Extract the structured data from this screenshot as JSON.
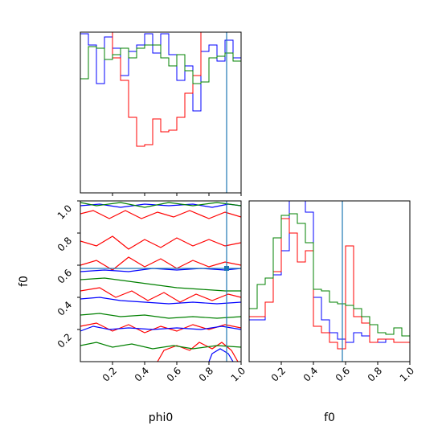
{
  "chart_data": [
    {
      "type": "histogram",
      "panel": "phi0 marginal (top-left)",
      "xlim": [
        0,
        1
      ],
      "truth": 0.91,
      "series": [
        {
          "color": "#0000ff",
          "bins": [
            0.0,
            0.05,
            0.1,
            0.15,
            0.2,
            0.25,
            0.3,
            0.35,
            0.4,
            0.45,
            0.5,
            0.55,
            0.6,
            0.65,
            0.7,
            0.75,
            0.8,
            0.85,
            0.9,
            0.95,
            1.0
          ],
          "heights": [
            0.99,
            0.92,
            0.68,
            0.97,
            0.9,
            0.73,
            0.88,
            0.92,
            0.99,
            0.87,
            0.99,
            0.86,
            0.7,
            0.79,
            0.51,
            0.88,
            0.92,
            0.82,
            0.95,
            0.84
          ]
        },
        {
          "color": "#ff0000",
          "bins": [
            0.0,
            0.05,
            0.1,
            0.15,
            0.2,
            0.25,
            0.3,
            0.35,
            0.4,
            0.45,
            0.5,
            0.55,
            0.6,
            0.65,
            0.7,
            0.75,
            0.8,
            0.85,
            0.9,
            0.95,
            1.0
          ],
          "heights": [
            1.2,
            1.2,
            1.2,
            1.2,
            0.84,
            0.7,
            0.47,
            0.29,
            0.3,
            0.46,
            0.38,
            0.39,
            0.47,
            0.62,
            0.73,
            1.2,
            1.2,
            1.2,
            1.2,
            1.2
          ]
        },
        {
          "color": "#008000",
          "bins": [
            0.0,
            0.05,
            0.1,
            0.15,
            0.2,
            0.25,
            0.3,
            0.35,
            0.4,
            0.45,
            0.5,
            0.55,
            0.6,
            0.65,
            0.7,
            0.75,
            0.8,
            0.85,
            0.9,
            0.95,
            1.0
          ],
          "heights": [
            0.71,
            0.91,
            0.9,
            0.83,
            0.86,
            0.9,
            0.84,
            0.9,
            0.92,
            0.92,
            0.84,
            0.79,
            0.86,
            0.76,
            0.68,
            0.69,
            0.84,
            0.85,
            0.87,
            0.82
          ]
        }
      ]
    },
    {
      "type": "contour",
      "panel": "phi0 vs f0 (bottom-left)",
      "xlabel": "phi0",
      "ylabel": "f0",
      "xlim": [
        0,
        1
      ],
      "ylim": [
        0,
        1
      ],
      "xticks": [
        "0.2",
        "0.4",
        "0.6",
        "0.8",
        "1.0"
      ],
      "yticks": [
        "0.2",
        "0.4",
        "0.6",
        "0.8",
        "1.0"
      ],
      "truth": {
        "x": 0.91,
        "y": 0.58
      },
      "contours": [
        {
          "color": "#ff0000",
          "lines": [
            [
              [
                0.0,
                0.92
              ],
              [
                0.08,
                0.94
              ],
              [
                0.18,
                0.89
              ],
              [
                0.28,
                0.94
              ],
              [
                0.38,
                0.89
              ],
              [
                0.48,
                0.93
              ],
              [
                0.58,
                0.9
              ],
              [
                0.68,
                0.94
              ],
              [
                0.8,
                0.89
              ],
              [
                0.9,
                0.93
              ],
              [
                1.0,
                0.9
              ]
            ],
            [
              [
                0.0,
                0.75
              ],
              [
                0.1,
                0.72
              ],
              [
                0.2,
                0.78
              ],
              [
                0.3,
                0.7
              ],
              [
                0.4,
                0.76
              ],
              [
                0.5,
                0.71
              ],
              [
                0.6,
                0.77
              ],
              [
                0.7,
                0.72
              ],
              [
                0.8,
                0.76
              ],
              [
                0.9,
                0.72
              ],
              [
                1.0,
                0.74
              ]
            ],
            [
              [
                0.0,
                0.6
              ],
              [
                0.1,
                0.63
              ],
              [
                0.2,
                0.57
              ],
              [
                0.3,
                0.65
              ],
              [
                0.4,
                0.59
              ],
              [
                0.5,
                0.64
              ],
              [
                0.6,
                0.58
              ],
              [
                0.7,
                0.63
              ],
              [
                0.8,
                0.59
              ],
              [
                0.9,
                0.62
              ],
              [
                1.0,
                0.6
              ]
            ],
            [
              [
                0.0,
                0.44
              ],
              [
                0.12,
                0.46
              ],
              [
                0.22,
                0.4
              ],
              [
                0.32,
                0.44
              ],
              [
                0.42,
                0.38
              ],
              [
                0.52,
                0.43
              ],
              [
                0.62,
                0.37
              ],
              [
                0.72,
                0.42
              ],
              [
                0.82,
                0.38
              ],
              [
                0.92,
                0.42
              ],
              [
                1.0,
                0.4
              ]
            ],
            [
              [
                0.0,
                0.22
              ],
              [
                0.1,
                0.24
              ],
              [
                0.2,
                0.19
              ],
              [
                0.3,
                0.23
              ],
              [
                0.4,
                0.18
              ],
              [
                0.5,
                0.22
              ],
              [
                0.6,
                0.19
              ],
              [
                0.7,
                0.23
              ],
              [
                0.8,
                0.2
              ],
              [
                0.9,
                0.23
              ],
              [
                1.0,
                0.21
              ]
            ],
            [
              [
                0.48,
                0.0
              ],
              [
                0.52,
                0.07
              ],
              [
                0.6,
                0.1
              ],
              [
                0.68,
                0.07
              ],
              [
                0.74,
                0.12
              ],
              [
                0.82,
                0.08
              ],
              [
                0.88,
                0.12
              ],
              [
                0.94,
                0.07
              ],
              [
                0.98,
                0.0
              ]
            ]
          ]
        },
        {
          "color": "#0000ff",
          "lines": [
            [
              [
                0.0,
                0.97
              ],
              [
                0.12,
                0.98
              ],
              [
                0.25,
                0.96
              ],
              [
                0.4,
                0.98
              ],
              [
                0.55,
                0.97
              ],
              [
                0.7,
                0.98
              ],
              [
                0.82,
                0.96
              ],
              [
                0.92,
                0.98
              ],
              [
                1.0,
                0.97
              ]
            ],
            [
              [
                0.0,
                0.56
              ],
              [
                0.15,
                0.57
              ],
              [
                0.3,
                0.56
              ],
              [
                0.45,
                0.58
              ],
              [
                0.6,
                0.57
              ],
              [
                0.75,
                0.58
              ],
              [
                0.9,
                0.57
              ],
              [
                1.0,
                0.58
              ]
            ],
            [
              [
                0.0,
                0.39
              ],
              [
                0.12,
                0.4
              ],
              [
                0.25,
                0.38
              ],
              [
                0.4,
                0.37
              ],
              [
                0.55,
                0.36
              ],
              [
                0.7,
                0.37
              ],
              [
                0.85,
                0.36
              ],
              [
                1.0,
                0.37
              ]
            ],
            [
              [
                0.0,
                0.19
              ],
              [
                0.08,
                0.22
              ],
              [
                0.18,
                0.2
              ],
              [
                0.3,
                0.21
              ],
              [
                0.45,
                0.2
              ],
              [
                0.6,
                0.21
              ],
              [
                0.75,
                0.2
              ],
              [
                0.88,
                0.22
              ],
              [
                1.0,
                0.2
              ]
            ],
            [
              [
                0.8,
                0.0
              ],
              [
                0.82,
                0.05
              ],
              [
                0.87,
                0.08
              ],
              [
                0.92,
                0.05
              ],
              [
                0.95,
                0.0
              ]
            ]
          ]
        },
        {
          "color": "#008000",
          "lines": [
            [
              [
                0.0,
                0.99
              ],
              [
                0.1,
                0.97
              ],
              [
                0.25,
                0.99
              ],
              [
                0.4,
                0.96
              ],
              [
                0.55,
                0.99
              ],
              [
                0.7,
                0.97
              ],
              [
                0.85,
                0.99
              ],
              [
                1.0,
                0.97
              ]
            ],
            [
              [
                0.0,
                0.51
              ],
              [
                0.15,
                0.52
              ],
              [
                0.3,
                0.5
              ],
              [
                0.45,
                0.48
              ],
              [
                0.6,
                0.46
              ],
              [
                0.75,
                0.45
              ],
              [
                0.9,
                0.44
              ],
              [
                1.0,
                0.44
              ]
            ],
            [
              [
                0.0,
                0.29
              ],
              [
                0.12,
                0.3
              ],
              [
                0.25,
                0.28
              ],
              [
                0.4,
                0.29
              ],
              [
                0.55,
                0.27
              ],
              [
                0.7,
                0.28
              ],
              [
                0.85,
                0.27
              ],
              [
                1.0,
                0.28
              ]
            ],
            [
              [
                0.0,
                0.1
              ],
              [
                0.1,
                0.12
              ],
              [
                0.2,
                0.09
              ],
              [
                0.32,
                0.11
              ],
              [
                0.45,
                0.08
              ],
              [
                0.58,
                0.1
              ],
              [
                0.7,
                0.08
              ],
              [
                0.85,
                0.1
              ],
              [
                1.0,
                0.09
              ]
            ]
          ]
        }
      ]
    },
    {
      "type": "histogram",
      "panel": "f0 marginal (bottom-right)",
      "xlabel": "f0",
      "xlim": [
        0,
        1
      ],
      "xticks": [
        "0.2",
        "0.4",
        "0.6",
        "0.8",
        "1.0"
      ],
      "truth": 0.58,
      "series": [
        {
          "color": "#0000ff",
          "bins": [
            0.0,
            0.05,
            0.1,
            0.15,
            0.2,
            0.25,
            0.3,
            0.35,
            0.4,
            0.45,
            0.5,
            0.55,
            0.6,
            0.65,
            0.7,
            0.75,
            0.8,
            0.85,
            0.9,
            0.95,
            1.0
          ],
          "heights": [
            0.26,
            0.26,
            0.37,
            0.54,
            0.69,
            1.05,
            1.05,
            0.93,
            0.4,
            0.26,
            0.18,
            0.14,
            0.12,
            0.18,
            0.16,
            0.12,
            0.12,
            0.14,
            0.12,
            0.12
          ]
        },
        {
          "color": "#ff0000",
          "bins": [
            0.0,
            0.05,
            0.1,
            0.15,
            0.2,
            0.25,
            0.3,
            0.35,
            0.4,
            0.45,
            0.5,
            0.55,
            0.6,
            0.65,
            0.7,
            0.75,
            0.8,
            0.85,
            0.9,
            0.95,
            1.0
          ],
          "heights": [
            0.28,
            0.28,
            0.37,
            0.56,
            0.89,
            0.8,
            0.62,
            0.69,
            0.22,
            0.18,
            0.12,
            0.08,
            0.72,
            0.28,
            0.24,
            0.12,
            0.14,
            0.14,
            0.12,
            0.12
          ]
        },
        {
          "color": "#008000",
          "bins": [
            0.0,
            0.05,
            0.1,
            0.15,
            0.2,
            0.25,
            0.3,
            0.35,
            0.4,
            0.45,
            0.5,
            0.55,
            0.6,
            0.65,
            0.7,
            0.75,
            0.8,
            0.85,
            0.9,
            0.95,
            1.0
          ],
          "heights": [
            0.33,
            0.48,
            0.52,
            0.77,
            0.91,
            0.92,
            0.86,
            0.74,
            0.45,
            0.44,
            0.37,
            0.36,
            0.35,
            0.33,
            0.28,
            0.23,
            0.18,
            0.17,
            0.21,
            0.16
          ]
        }
      ]
    }
  ]
}
